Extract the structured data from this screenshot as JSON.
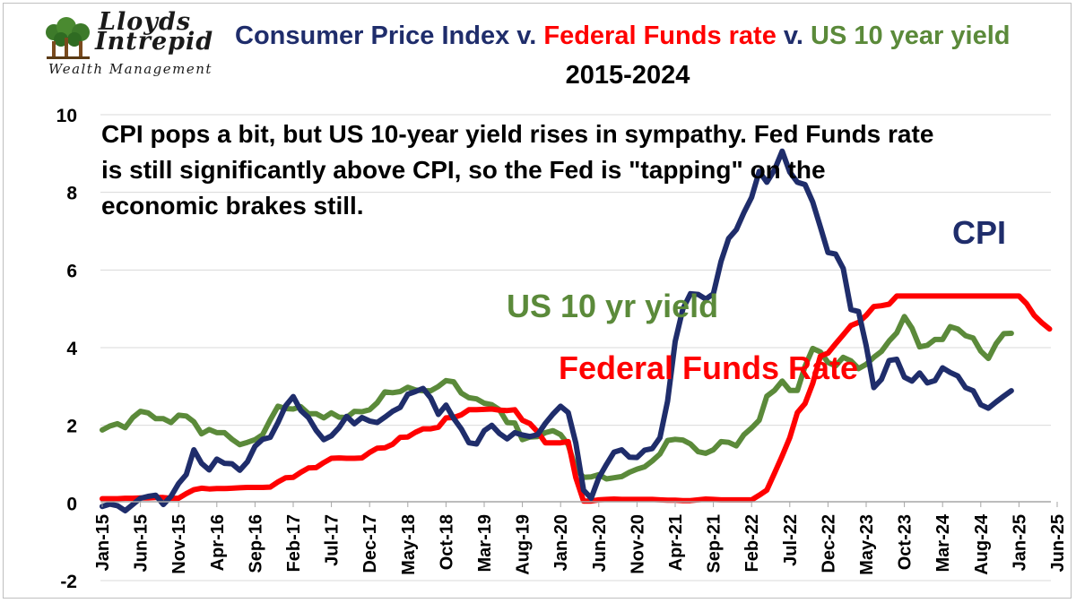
{
  "logo": {
    "name_line1": "Lloyds",
    "name_line2": "Intrepid",
    "tagline": "Wealth Management"
  },
  "title": {
    "part1": "Consumer Price Index",
    "sep1": " v. ",
    "part2": "Federal Funds rate",
    "sep2": " v. ",
    "part3": "US 10 year yield",
    "subtitle": "2015-2024"
  },
  "annotation": "CPI pops a bit, but US 10-year yield rises in sympathy. Fed Funds rate is still significantly above CPI, so the Fed is \"tapping\" on the economic brakes still.",
  "colors": {
    "cpi": "#1f2d6b",
    "fed": "#ff0000",
    "yield": "#5b8a3a",
    "grid": "#d9d9d9"
  },
  "chart_data": {
    "type": "line",
    "title": "Consumer Price Index v. Federal Funds rate v. US 10 year yield 2015-2024",
    "ylim": [
      -2,
      10
    ],
    "yticks": [
      -2,
      0,
      2,
      4,
      6,
      8,
      10
    ],
    "grid": true,
    "x_start": "Jan-15",
    "x_months": 125,
    "x_tick_labels": [
      "Jan-15",
      "Jun-15",
      "Nov-15",
      "Apr-16",
      "Sep-16",
      "Feb-17",
      "Jul-17",
      "Dec-17",
      "May-18",
      "Oct-18",
      "Mar-19",
      "Aug-19",
      "Jan-20",
      "Jun-20",
      "Nov-20",
      "Apr-21",
      "Sep-21",
      "Feb-22",
      "Jul-22",
      "Dec-22",
      "May-23",
      "Oct-23",
      "Mar-24",
      "Aug-24",
      "Jan-25",
      "Jun-25"
    ],
    "series_labels": {
      "cpi": "CPI",
      "yield": "US 10 yr yield",
      "fed": "Federal Funds Rate"
    },
    "series": [
      {
        "name": "US 10 year yield",
        "key": "yield",
        "values": [
          1.88,
          1.98,
          2.04,
          1.94,
          2.2,
          2.36,
          2.32,
          2.17,
          2.17,
          2.07,
          2.26,
          2.24,
          2.09,
          1.78,
          1.89,
          1.81,
          1.81,
          1.64,
          1.5,
          1.56,
          1.63,
          1.76,
          2.14,
          2.49,
          2.43,
          2.42,
          2.48,
          2.3,
          2.3,
          2.19,
          2.32,
          2.21,
          2.2,
          2.36,
          2.35,
          2.4,
          2.58,
          2.86,
          2.84,
          2.87,
          2.98,
          2.91,
          2.89,
          2.89,
          3.0,
          3.15,
          3.12,
          2.83,
          2.71,
          2.68,
          2.57,
          2.53,
          2.4,
          2.07,
          2.06,
          1.63,
          1.7,
          1.71,
          1.81,
          1.86,
          1.76,
          1.5,
          0.87,
          0.66,
          0.67,
          0.73,
          0.62,
          0.65,
          0.68,
          0.79,
          0.87,
          0.93,
          1.08,
          1.26,
          1.61,
          1.64,
          1.62,
          1.52,
          1.32,
          1.28,
          1.37,
          1.58,
          1.56,
          1.47,
          1.76,
          1.93,
          2.13,
          2.75,
          2.9,
          3.14,
          2.9,
          2.9,
          3.52,
          3.98,
          3.89,
          3.62,
          3.53,
          3.75,
          3.66,
          3.46,
          3.57,
          3.75,
          3.9,
          4.17,
          4.38,
          4.8,
          4.5,
          4.02,
          4.06,
          4.21,
          4.21,
          4.54,
          4.48,
          4.31,
          4.25,
          3.91,
          3.72,
          4.1,
          4.36,
          4.37
        ]
      },
      {
        "name": "Federal Funds rate",
        "key": "fed",
        "values": [
          0.11,
          0.11,
          0.11,
          0.12,
          0.12,
          0.13,
          0.13,
          0.14,
          0.14,
          0.12,
          0.12,
          0.24,
          0.34,
          0.38,
          0.36,
          0.37,
          0.37,
          0.38,
          0.39,
          0.4,
          0.4,
          0.4,
          0.41,
          0.54,
          0.65,
          0.66,
          0.79,
          0.9,
          0.91,
          1.04,
          1.15,
          1.16,
          1.15,
          1.15,
          1.16,
          1.3,
          1.41,
          1.42,
          1.51,
          1.69,
          1.7,
          1.82,
          1.91,
          1.91,
          1.95,
          2.19,
          2.2,
          2.27,
          2.4,
          2.4,
          2.41,
          2.42,
          2.39,
          2.38,
          2.4,
          2.13,
          2.04,
          1.83,
          1.55,
          1.55,
          1.55,
          1.58,
          0.65,
          0.05,
          0.05,
          0.08,
          0.09,
          0.1,
          0.09,
          0.09,
          0.09,
          0.09,
          0.09,
          0.08,
          0.07,
          0.07,
          0.06,
          0.06,
          0.08,
          0.1,
          0.09,
          0.08,
          0.08,
          0.08,
          0.08,
          0.08,
          0.2,
          0.33,
          0.77,
          1.21,
          1.68,
          2.33,
          2.56,
          3.08,
          3.78,
          3.86,
          4.1,
          4.33,
          4.57,
          4.65,
          4.83,
          5.06,
          5.08,
          5.12,
          5.33,
          5.33,
          5.33,
          5.33,
          5.33,
          5.33,
          5.33,
          5.33,
          5.33,
          5.33,
          5.33,
          5.33,
          5.33,
          5.33,
          5.33,
          5.33,
          5.33,
          5.13,
          4.83,
          4.64,
          4.48
        ]
      },
      {
        "name": "Consumer Price Index",
        "key": "cpi",
        "values": [
          -0.09,
          -0.03,
          -0.07,
          -0.2,
          -0.04,
          0.12,
          0.17,
          0.2,
          -0.04,
          0.17,
          0.5,
          0.73,
          1.37,
          1.02,
          0.85,
          1.13,
          1.02,
          1.01,
          0.84,
          1.06,
          1.46,
          1.64,
          1.69,
          2.07,
          2.5,
          2.74,
          2.38,
          2.2,
          1.87,
          1.63,
          1.73,
          1.94,
          2.23,
          2.04,
          2.2,
          2.11,
          2.07,
          2.21,
          2.36,
          2.46,
          2.8,
          2.87,
          2.95,
          2.7,
          2.28,
          2.52,
          2.18,
          1.91,
          1.55,
          1.52,
          1.86,
          2.0,
          1.79,
          1.65,
          1.81,
          1.75,
          1.71,
          1.76,
          2.05,
          2.29,
          2.49,
          2.33,
          1.54,
          0.33,
          0.12,
          0.65,
          0.99,
          1.31,
          1.37,
          1.18,
          1.17,
          1.36,
          1.4,
          1.68,
          2.62,
          4.16,
          4.99,
          5.39,
          5.37,
          5.25,
          5.39,
          6.22,
          6.81,
          7.04,
          7.48,
          7.87,
          8.54,
          8.26,
          8.58,
          9.06,
          8.52,
          8.26,
          8.2,
          7.75,
          7.11,
          6.45,
          6.41,
          6.04,
          4.98,
          4.93,
          4.05,
          2.97,
          3.18,
          3.67,
          3.7,
          3.24,
          3.14,
          3.35,
          3.09,
          3.15,
          3.48,
          3.36,
          3.27,
          2.97,
          2.89,
          2.53,
          2.44,
          2.6,
          2.75,
          2.89
        ]
      }
    ]
  }
}
